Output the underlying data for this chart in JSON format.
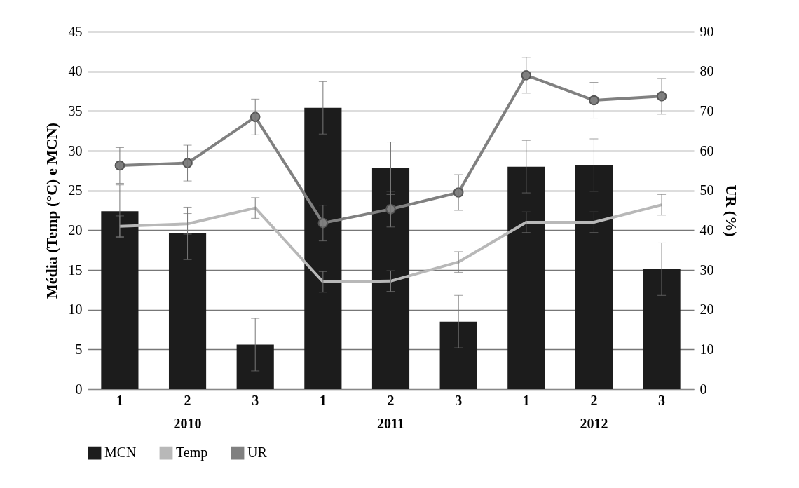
{
  "chart_data": {
    "type": "bar",
    "categories": [
      "1",
      "2",
      "3",
      "1",
      "2",
      "3",
      "1",
      "2",
      "3"
    ],
    "annotations": [
      "2010",
      "2011",
      "2012"
    ],
    "ylabel": "Média (Temp (°C) e MCN)",
    "y2label": "UR (%)",
    "ylim": [
      0,
      45
    ],
    "yticks": [
      0,
      5,
      10,
      15,
      20,
      25,
      30,
      35,
      40,
      45
    ],
    "y2lim": [
      0,
      90
    ],
    "y2ticks": [
      0,
      10,
      20,
      30,
      40,
      50,
      60,
      70,
      80,
      90
    ],
    "grid": "y",
    "legend": "bottom",
    "series": [
      {
        "name": "MCN",
        "color": "#1c1c1c",
        "values": [
          22.4,
          19.6,
          5.6,
          35.4,
          27.8,
          8.5,
          28.0,
          28.2,
          15.1
        ],
        "errors": [
          3.3,
          3.3,
          3.3,
          3.3,
          3.3,
          3.3,
          3.3,
          3.3,
          3.3
        ]
      },
      {
        "name": "Temp",
        "type": "line",
        "color": "#b8b8b8",
        "marker": "none",
        "values": [
          20.5,
          20.8,
          22.8,
          13.5,
          13.6,
          16.0,
          21.0,
          21.0,
          23.2
        ],
        "errors": [
          1.3,
          1.3,
          1.3,
          1.3,
          1.3,
          1.3,
          1.3,
          1.3,
          1.3
        ]
      },
      {
        "name": "UR",
        "type": "line",
        "axis": "y2",
        "color": "#808080",
        "marker": "circle",
        "values": [
          56.3,
          56.9,
          68.5,
          41.8,
          45.3,
          49.5,
          79.0,
          72.7,
          73.7
        ],
        "errors": [
          4.5,
          4.5,
          4.5,
          4.5,
          4.5,
          4.5,
          4.5,
          4.5,
          4.5
        ]
      }
    ]
  }
}
